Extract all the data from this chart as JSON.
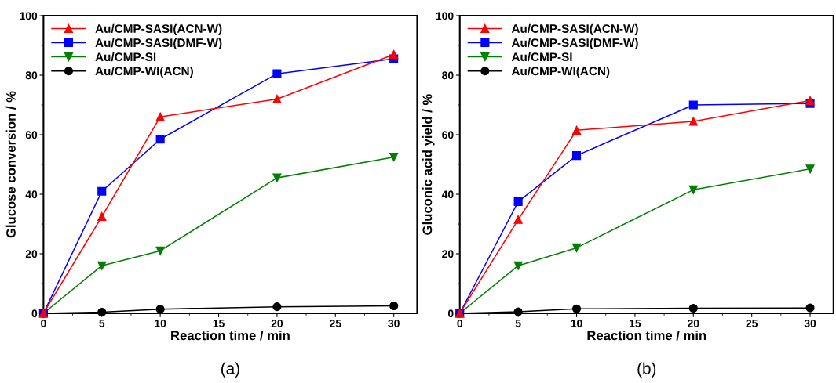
{
  "chart_data": [
    {
      "type": "line",
      "xlabel": "Reaction time / min",
      "ylabel": "Glucose conversion / %",
      "annotations": [
        "(a)"
      ],
      "x": [
        0,
        5,
        10,
        20,
        30
      ],
      "xlim": [
        0,
        32
      ],
      "xticks": [
        0,
        5,
        10,
        15,
        20,
        25,
        30
      ],
      "ylim": [
        0,
        100
      ],
      "yticks": [
        0,
        20,
        40,
        60,
        80,
        100
      ],
      "legend": "top left",
      "grid": false,
      "series": [
        {
          "name": "Au/CMP-SASI(ACN-W)",
          "color": "#ff0000",
          "marker": "triangle",
          "values": [
            0,
            32.5,
            66,
            72,
            87
          ]
        },
        {
          "name": "Au/CMP-SASI(DMF-W)",
          "color": "#0000ff",
          "marker": "square",
          "values": [
            0,
            41,
            58.5,
            80.5,
            85.5
          ]
        },
        {
          "name": "Au/CMP-SI",
          "color": "#008000",
          "marker": "triangle_down",
          "values": [
            0,
            16,
            21,
            45.5,
            52.5
          ]
        },
        {
          "name": "Au/CMP-WI(ACN)",
          "color": "#000000",
          "marker": "circle",
          "values": [
            0,
            0.4,
            1.4,
            2.2,
            2.5
          ]
        }
      ]
    },
    {
      "type": "line",
      "xlabel": "Reaction time / min",
      "ylabel": "Gluconic acid yield / %",
      "annotations": [
        "(b)"
      ],
      "x": [
        0,
        5,
        10,
        20,
        30
      ],
      "xlim": [
        0,
        32
      ],
      "xticks": [
        0,
        5,
        10,
        15,
        20,
        25,
        30
      ],
      "ylim": [
        0,
        100
      ],
      "yticks": [
        0,
        20,
        40,
        60,
        80,
        100
      ],
      "legend": "top left",
      "grid": false,
      "series": [
        {
          "name": "Au/CMP-SASI(ACN-W)",
          "color": "#ff0000",
          "marker": "triangle",
          "values": [
            0,
            31.5,
            61.5,
            64.5,
            71.5
          ]
        },
        {
          "name": "Au/CMP-SASI(DMF-W)",
          "color": "#0000ff",
          "marker": "square",
          "values": [
            0,
            37.5,
            53,
            70,
            70.5
          ]
        },
        {
          "name": "Au/CMP-SI",
          "color": "#008000",
          "marker": "triangle_down",
          "values": [
            0,
            16,
            22,
            41.5,
            48.5
          ]
        },
        {
          "name": "Au/CMP-WI(ACN)",
          "color": "#000000",
          "marker": "circle",
          "values": [
            0,
            0.5,
            1.5,
            1.7,
            1.8
          ]
        }
      ]
    }
  ]
}
